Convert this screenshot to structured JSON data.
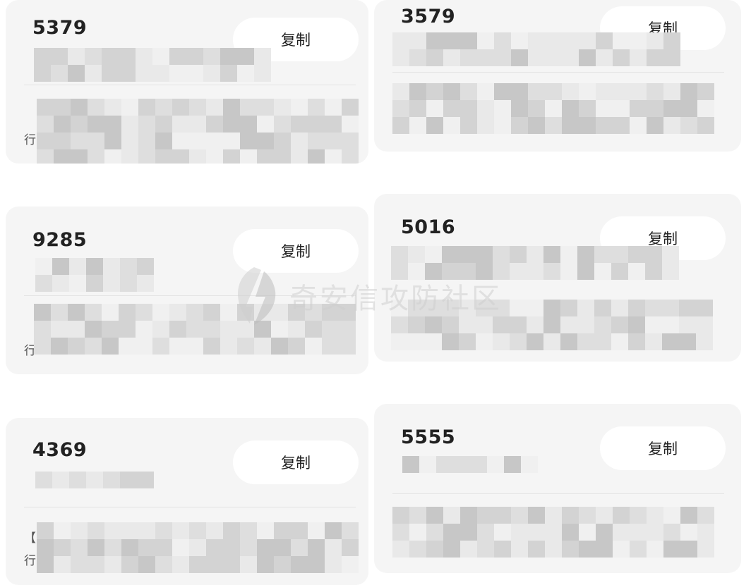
{
  "cards": [
    {
      "code": "5379",
      "copy_label": "复制",
      "left_fragment": "行"
    },
    {
      "code": "3579",
      "copy_label": "复制"
    },
    {
      "code": "9285",
      "copy_label": "复制",
      "left_fragment": "行"
    },
    {
      "code": "5016",
      "copy_label": "复制"
    },
    {
      "code": "4369",
      "copy_label": "复制",
      "left_fragment": "行",
      "bracket_fragment": "【"
    },
    {
      "code": "5555",
      "copy_label": "复制"
    }
  ],
  "watermark": {
    "text": "奇安信攻防社区",
    "icon": "lightning-bolt-icon"
  },
  "colors": {
    "card_bg": "#f5f5f5",
    "button_bg": "#ffffff",
    "pixelation": [
      "#e9e9e9",
      "#dedede",
      "#d3d3d3",
      "#c7c7c7",
      "#f0f0f0"
    ]
  }
}
